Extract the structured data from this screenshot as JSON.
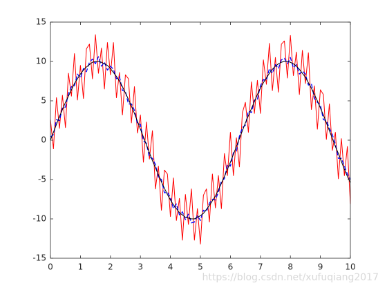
{
  "chart_data": {
    "type": "line",
    "x": [
      0,
      0.1,
      0.2,
      0.3,
      0.4,
      0.5,
      0.6,
      0.7,
      0.8,
      0.9,
      1,
      1.1,
      1.2,
      1.3,
      1.4,
      1.5,
      1.6,
      1.7,
      1.8,
      1.9,
      2,
      2.1,
      2.2,
      2.3,
      2.4,
      2.5,
      2.6,
      2.7,
      2.8,
      2.9,
      3,
      3.1,
      3.2,
      3.3,
      3.4,
      3.5,
      3.6,
      3.7,
      3.8,
      3.9,
      4,
      4.1,
      4.2,
      4.3,
      4.4,
      4.5,
      4.6,
      4.7,
      4.8,
      4.9,
      5,
      5.1,
      5.2,
      5.3,
      5.4,
      5.5,
      5.6,
      5.7,
      5.8,
      5.9,
      6,
      6.1,
      6.2,
      6.3,
      6.4,
      6.5,
      6.6,
      6.7,
      6.8,
      6.9,
      7,
      7.1,
      7.2,
      7.3,
      7.4,
      7.5,
      7.6,
      7.7,
      7.8,
      7.9,
      8,
      8.1,
      8.2,
      8.3,
      8.4,
      8.5,
      8.6,
      8.7,
      8.8,
      8.9,
      9,
      9.1,
      9.2,
      9.3,
      9.4,
      9.5,
      9.6,
      9.7,
      9.8,
      9.9,
      10
    ],
    "series": [
      {
        "color": "#ff0000",
        "style": "solid",
        "values": [
          2.6,
          -1.1,
          5.4,
          1.5,
          5.7,
          1.6,
          8.5,
          5.6,
          11.0,
          5.1,
          9.5,
          5.3,
          11.6,
          12.2,
          7.8,
          13.4,
          8.5,
          11.7,
          6.5,
          12.4,
          8.3,
          12.4,
          5.4,
          8.6,
          3.2,
          8.3,
          7.8,
          2.2,
          6.8,
          0.9,
          3.2,
          -2.8,
          2.3,
          -2.4,
          1.2,
          -6.2,
          -3.3,
          -8.9,
          -3.8,
          -4.3,
          -9.7,
          -4.8,
          -10.2,
          -7.4,
          -12.7,
          -6.9,
          -10.7,
          -6.2,
          -12.7,
          -8.7,
          -13.2,
          -7.0,
          -6.2,
          -10.4,
          -4.3,
          -8.6,
          -4.5,
          -8.7,
          -1.7,
          -4.5,
          1.0,
          -4.5,
          0.3,
          -3.4,
          3.5,
          4.8,
          1.0,
          7.4,
          3.4,
          7.6,
          3.4,
          10.2,
          7.1,
          12.3,
          6.3,
          10.5,
          6.1,
          12.2,
          12.6,
          7.9,
          13.3,
          8.2,
          11.2,
          5.8,
          11.4,
          7.2,
          11.1,
          3.9,
          6.9,
          1.4,
          6.4,
          5.8,
          0.1,
          4.6,
          -1.3,
          1.0,
          -4.9,
          0.2,
          -4.5,
          -0.8,
          -8.1
        ]
      },
      {
        "color": "#0000ff",
        "style": "dashed",
        "values": [
          0.4,
          0.7,
          2.6,
          2.5,
          4.1,
          4.2,
          5.9,
          6.8,
          6.9,
          8.4,
          7.9,
          9.1,
          8.7,
          9.9,
          10.3,
          9.7,
          10.6,
          9.4,
          9.9,
          8.9,
          9.4,
          9.0,
          7.8,
          8.1,
          6.3,
          6.2,
          4.6,
          4.6,
          3.8,
          2.1,
          2.0,
          -0.1,
          -0.4,
          -2.2,
          -2.3,
          -3.1,
          -4.7,
          -5.0,
          -6.7,
          -6.6,
          -7.3,
          -8.7,
          -8.1,
          -9.5,
          -9.1,
          -10.1,
          -9.4,
          -10.5,
          -10.4,
          -9.6,
          -10.2,
          -8.9,
          -9.1,
          -8.0,
          -7.5,
          -7.6,
          -6.6,
          -5.2,
          -4.9,
          -3.1,
          -3.3,
          -1.6,
          -1.4,
          0.5,
          1.6,
          1.9,
          3.7,
          3.5,
          5.1,
          5.2,
          6.9,
          7.7,
          7.6,
          9.1,
          8.5,
          9.6,
          9.1,
          10.2,
          10.4,
          9.7,
          10.5,
          9.2,
          9.6,
          8.4,
          8.8,
          8.4,
          7.0,
          7.2,
          5.3,
          4.8,
          4.5,
          2.6,
          2.5,
          1.5,
          0.7,
          -0.5,
          -2.3,
          -2.3,
          -3.3,
          -4.3,
          -5.0
        ]
      },
      {
        "color": "#000000",
        "style": "solid",
        "values": [
          0,
          1.0,
          2.0,
          3.0,
          3.9,
          4.8,
          5.6,
          6.4,
          7.2,
          7.8,
          8.4,
          8.9,
          9.3,
          9.6,
          9.9,
          10.0,
          10.0,
          9.9,
          9.7,
          9.5,
          9.1,
          8.6,
          8.1,
          7.5,
          6.8,
          6.0,
          5.2,
          4.3,
          3.4,
          2.4,
          1.4,
          0.4,
          -0.6,
          -1.6,
          -2.6,
          -3.5,
          -4.4,
          -5.3,
          -6.1,
          -6.9,
          -7.6,
          -8.2,
          -8.7,
          -9.2,
          -9.5,
          -9.8,
          -9.9,
          -10.0,
          -10.0,
          -9.8,
          -9.6,
          -9.3,
          -8.8,
          -8.3,
          -7.7,
          -7.1,
          -6.3,
          -5.5,
          -4.6,
          -3.7,
          -2.8,
          -1.8,
          -0.8,
          0.2,
          1.2,
          2.2,
          3.1,
          4.0,
          4.9,
          5.8,
          6.6,
          7.3,
          7.9,
          8.5,
          9.0,
          9.4,
          9.7,
          9.9,
          10.0,
          10.0,
          9.9,
          9.7,
          9.4,
          9.0,
          8.5,
          8.0,
          7.3,
          6.6,
          5.8,
          5.0,
          4.1,
          3.2,
          2.2,
          1.2,
          0.2,
          -0.8,
          -1.7,
          -2.7,
          -3.7,
          -4.6,
          -5.4
        ]
      }
    ],
    "xlim": [
      0,
      10
    ],
    "xticks": [
      0,
      1,
      2,
      3,
      4,
      5,
      6,
      7,
      8,
      9,
      10
    ],
    "ylim": [
      -15,
      15
    ],
    "yticks": [
      -15,
      -10,
      -5,
      0,
      5,
      10,
      15
    ],
    "watermark": "https://blog.csdn.net/xufuqiang2017"
  }
}
